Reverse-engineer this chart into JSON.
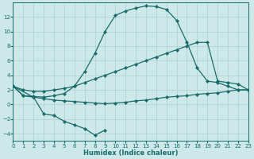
{
  "xlabel": "Humidex (Indice chaleur)",
  "bg_color": "#cde8e8",
  "line_color": "#1a6b6b",
  "grid_color": "#b0cfcf",
  "xlim": [
    0,
    23
  ],
  "ylim": [
    -5,
    14
  ],
  "xticks": [
    0,
    1,
    2,
    3,
    4,
    5,
    6,
    7,
    8,
    9,
    10,
    11,
    12,
    13,
    14,
    15,
    16,
    17,
    18,
    19,
    20,
    21,
    22,
    23
  ],
  "yticks": [
    -4,
    -2,
    0,
    2,
    4,
    6,
    8,
    10,
    12
  ],
  "line_bell_x": [
    0,
    1,
    2,
    3,
    4,
    5,
    6,
    7,
    8,
    9,
    10,
    11,
    12,
    13,
    14,
    15,
    16,
    17,
    18,
    19,
    20,
    21,
    22,
    23
  ],
  "line_bell_y": [
    2.5,
    1.2,
    1.1,
    1.0,
    1.2,
    1.5,
    2.5,
    4.5,
    7.0,
    10.0,
    12.2,
    12.8,
    13.2,
    13.5,
    13.4,
    13.0,
    11.5,
    8.5,
    5.0,
    3.2,
    3.0,
    2.5,
    2.0,
    2.0
  ],
  "line_upper_x": [
    0,
    1,
    2,
    3,
    4,
    5,
    6,
    7,
    8,
    9,
    10,
    11,
    12,
    13,
    14,
    15,
    16,
    17,
    18,
    19,
    20,
    21,
    22,
    23
  ],
  "line_upper_y": [
    2.5,
    2.0,
    1.8,
    1.8,
    2.0,
    2.2,
    2.5,
    3.0,
    3.5,
    4.0,
    4.5,
    5.0,
    5.5,
    6.0,
    6.5,
    7.0,
    7.5,
    8.0,
    8.5,
    8.5,
    3.2,
    3.0,
    2.8,
    2.0
  ],
  "line_lower_x": [
    0,
    2,
    3,
    4,
    5,
    6,
    7,
    8,
    9,
    10,
    11,
    12,
    13,
    14,
    15,
    16,
    17,
    18,
    19,
    20,
    21,
    22,
    23
  ],
  "line_lower_y": [
    2.5,
    1.0,
    0.8,
    0.6,
    0.5,
    0.4,
    0.3,
    0.2,
    0.1,
    0.2,
    0.3,
    0.5,
    0.6,
    0.8,
    1.0,
    1.1,
    1.2,
    1.4,
    1.5,
    1.6,
    1.8,
    2.0,
    2.0
  ],
  "line_dip_x": [
    0,
    1,
    2,
    3,
    4,
    5,
    6,
    7,
    8,
    9
  ],
  "line_dip_y": [
    2.5,
    1.2,
    1.0,
    -1.3,
    -1.5,
    -2.3,
    -2.8,
    -3.3,
    -4.2,
    -3.5
  ]
}
